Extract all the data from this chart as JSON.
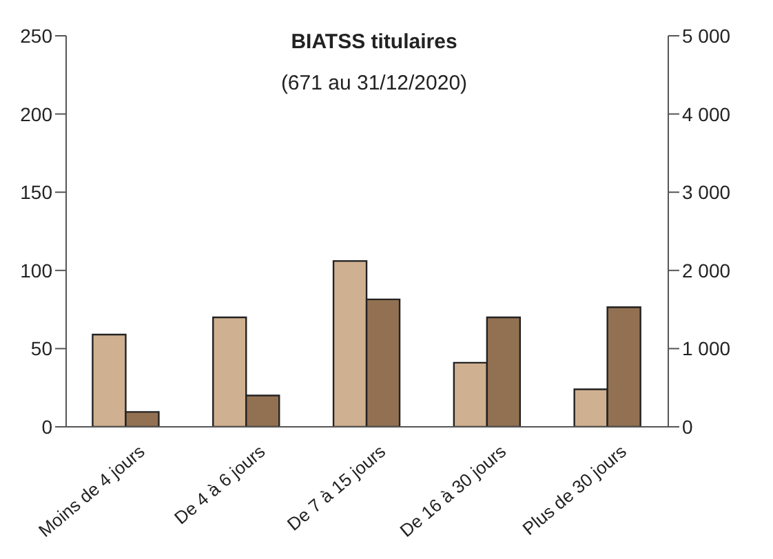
{
  "chart_data": {
    "type": "bar",
    "title": "BIATSS titulaires",
    "subtitle": "(671 au 31/12/2020)",
    "categories": [
      "Moins de 4 jours",
      "De 4 à 6 jours",
      "De 7 à 15 jours",
      "De 16 à 30 jours",
      "Plus de 30 jours"
    ],
    "series": [
      {
        "color": "#cfb090",
        "values": [
          59,
          70,
          106,
          41,
          24
        ]
      },
      {
        "color": "#927152",
        "values": [
          190,
          400,
          1630,
          1400,
          1530
        ],
        "axis": "y2"
      }
    ],
    "ylim": [
      0,
      250
    ],
    "yticks": [
      0,
      50,
      100,
      150,
      200,
      250
    ],
    "y2lim": [
      0,
      5000
    ],
    "y2ticks": [
      0,
      {
        "value": 1000,
        "label": "1 000"
      },
      {
        "value": 2000,
        "label": "2 000"
      },
      {
        "value": 3000,
        "label": "3 000"
      },
      {
        "value": 4000,
        "label": "4 000"
      },
      {
        "value": 5000,
        "label": "5 000"
      }
    ],
    "grid": false,
    "legend": false
  }
}
